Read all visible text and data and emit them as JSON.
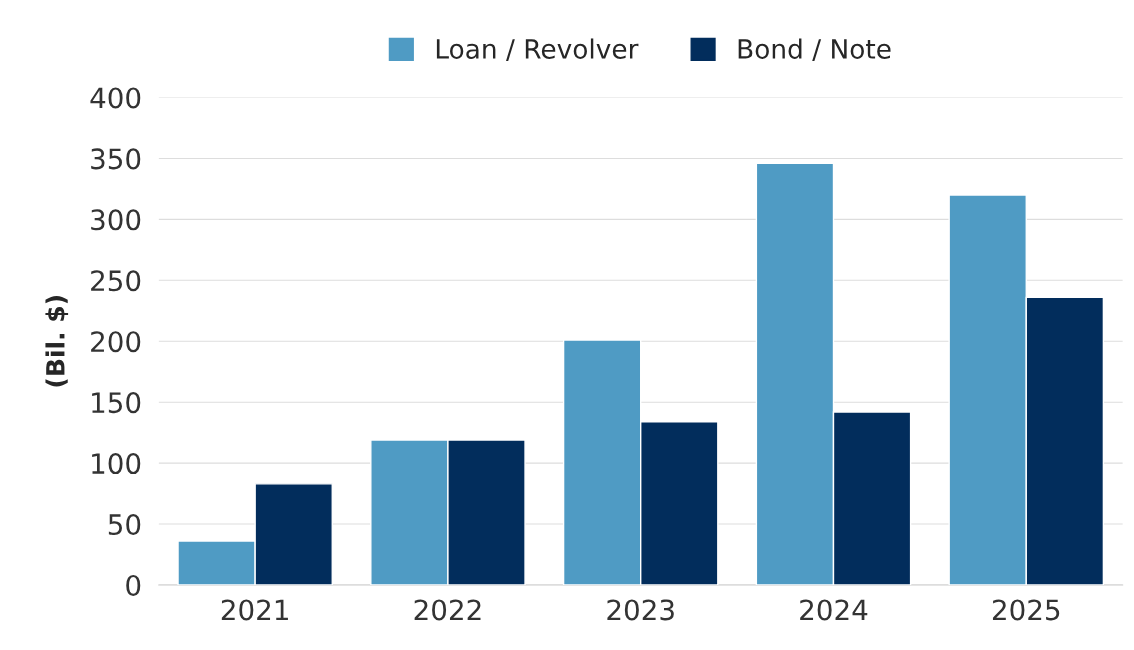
{
  "chart_data": {
    "type": "bar",
    "ylabel": "(Bil. $)",
    "categories": [
      "2021",
      "2022",
      "2023",
      "2024",
      "2025"
    ],
    "series": [
      {
        "name": "Loan / Revolver",
        "color": "#4f9bc4",
        "values": [
          36,
          119,
          201,
          346,
          320
        ]
      },
      {
        "name": "Bond / Note",
        "color": "#022d5c",
        "values": [
          83,
          119,
          134,
          142,
          236
        ]
      }
    ],
    "ylim": [
      0,
      400
    ],
    "yticks": [
      0,
      50,
      100,
      150,
      200,
      250,
      300,
      350,
      400
    ],
    "grid": "y",
    "legend": "top"
  }
}
